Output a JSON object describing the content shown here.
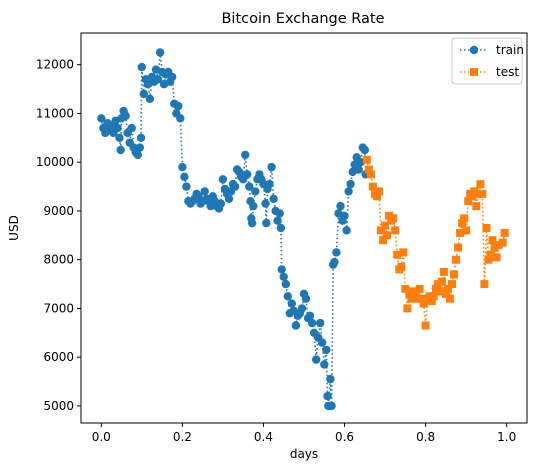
{
  "chart_data": {
    "type": "line",
    "title": "Bitcoin Exchange Rate",
    "xlabel": "days",
    "ylabel": "USD",
    "xlim": [
      -0.05,
      1.05
    ],
    "ylim": [
      4650,
      12650
    ],
    "x_ticks": [
      0.0,
      0.2,
      0.4,
      0.6,
      0.8,
      1.0
    ],
    "x_tick_labels": [
      "0.0",
      "0.2",
      "0.4",
      "0.6",
      "0.8",
      "1.0"
    ],
    "y_ticks": [
      5000,
      6000,
      7000,
      8000,
      9000,
      10000,
      11000,
      12000
    ],
    "y_tick_labels": [
      "5000",
      "6000",
      "7000",
      "8000",
      "9000",
      "10000",
      "11000",
      "12000"
    ],
    "grid": false,
    "legend_position": "top-right",
    "series": [
      {
        "name": "train",
        "color": "#1f77b4",
        "marker": "circle",
        "line_style": "dotted",
        "points": [
          [
            0.0,
            10900
          ],
          [
            0.005,
            10700
          ],
          [
            0.01,
            10600
          ],
          [
            0.015,
            10800
          ],
          [
            0.02,
            10650
          ],
          [
            0.025,
            10750
          ],
          [
            0.03,
            10600
          ],
          [
            0.035,
            10850
          ],
          [
            0.04,
            10700
          ],
          [
            0.045,
            10500
          ],
          [
            0.048,
            10250
          ],
          [
            0.05,
            10900
          ],
          [
            0.055,
            11050
          ],
          [
            0.06,
            10950
          ],
          [
            0.065,
            10600
          ],
          [
            0.07,
            10400
          ],
          [
            0.075,
            10700
          ],
          [
            0.08,
            10300
          ],
          [
            0.085,
            10200
          ],
          [
            0.09,
            10150
          ],
          [
            0.095,
            10300
          ],
          [
            0.098,
            10500
          ],
          [
            0.1,
            11950
          ],
          [
            0.105,
            11400
          ],
          [
            0.11,
            11700
          ],
          [
            0.115,
            11600
          ],
          [
            0.12,
            11300
          ],
          [
            0.125,
            11750
          ],
          [
            0.13,
            11650
          ],
          [
            0.135,
            11900
          ],
          [
            0.14,
            11700
          ],
          [
            0.145,
            12250
          ],
          [
            0.15,
            11850
          ],
          [
            0.155,
            11600
          ],
          [
            0.16,
            11800
          ],
          [
            0.165,
            11850
          ],
          [
            0.17,
            11650
          ],
          [
            0.175,
            11750
          ],
          [
            0.18,
            11200
          ],
          [
            0.185,
            11000
          ],
          [
            0.19,
            11150
          ],
          [
            0.195,
            10900
          ],
          [
            0.2,
            9900
          ],
          [
            0.205,
            9700
          ],
          [
            0.21,
            9500
          ],
          [
            0.215,
            9200
          ],
          [
            0.22,
            9150
          ],
          [
            0.225,
            9200
          ],
          [
            0.23,
            9250
          ],
          [
            0.235,
            9350
          ],
          [
            0.24,
            9300
          ],
          [
            0.245,
            9150
          ],
          [
            0.25,
            9200
          ],
          [
            0.255,
            9400
          ],
          [
            0.26,
            9250
          ],
          [
            0.265,
            9200
          ],
          [
            0.27,
            9100
          ],
          [
            0.275,
            9300
          ],
          [
            0.28,
            9200
          ],
          [
            0.285,
            9100
          ],
          [
            0.29,
            9050
          ],
          [
            0.295,
            9150
          ],
          [
            0.3,
            9650
          ],
          [
            0.305,
            9450
          ],
          [
            0.31,
            9350
          ],
          [
            0.315,
            9250
          ],
          [
            0.32,
            9400
          ],
          [
            0.325,
            9550
          ],
          [
            0.33,
            9500
          ],
          [
            0.335,
            9850
          ],
          [
            0.34,
            9800
          ],
          [
            0.345,
            9700
          ],
          [
            0.35,
            9650
          ],
          [
            0.355,
            10150
          ],
          [
            0.36,
            9750
          ],
          [
            0.365,
            9500
          ],
          [
            0.368,
            9200
          ],
          [
            0.37,
            8850
          ],
          [
            0.372,
            8750
          ],
          [
            0.375,
            9100
          ],
          [
            0.38,
            9400
          ],
          [
            0.385,
            9650
          ],
          [
            0.39,
            9750
          ],
          [
            0.395,
            9650
          ],
          [
            0.4,
            9550
          ],
          [
            0.405,
            9150
          ],
          [
            0.407,
            8750
          ],
          [
            0.41,
            9450
          ],
          [
            0.415,
            9550
          ],
          [
            0.42,
            9900
          ],
          [
            0.425,
            9250
          ],
          [
            0.43,
            9000
          ],
          [
            0.435,
            8800
          ],
          [
            0.44,
            8950
          ],
          [
            0.443,
            8650
          ],
          [
            0.445,
            7800
          ],
          [
            0.45,
            7650
          ],
          [
            0.455,
            7500
          ],
          [
            0.46,
            7250
          ],
          [
            0.465,
            6900
          ],
          [
            0.47,
            7100
          ],
          [
            0.475,
            6950
          ],
          [
            0.48,
            6650
          ],
          [
            0.485,
            6850
          ],
          [
            0.49,
            6900
          ],
          [
            0.495,
            7000
          ],
          [
            0.5,
            7300
          ],
          [
            0.505,
            7200
          ],
          [
            0.51,
            6800
          ],
          [
            0.515,
            6850
          ],
          [
            0.52,
            6700
          ],
          [
            0.525,
            6500
          ],
          [
            0.53,
            5950
          ],
          [
            0.535,
            6400
          ],
          [
            0.54,
            6700
          ],
          [
            0.545,
            6300
          ],
          [
            0.55,
            5850
          ],
          [
            0.555,
            6150
          ],
          [
            0.558,
            5200
          ],
          [
            0.56,
            5000
          ],
          [
            0.565,
            5550
          ],
          [
            0.568,
            5000
          ],
          [
            0.572,
            7900
          ],
          [
            0.575,
            7950
          ],
          [
            0.58,
            8150
          ],
          [
            0.585,
            8950
          ],
          [
            0.59,
            9100
          ],
          [
            0.595,
            8800
          ],
          [
            0.6,
            8900
          ],
          [
            0.605,
            8600
          ],
          [
            0.61,
            9400
          ],
          [
            0.615,
            9550
          ],
          [
            0.62,
            9800
          ],
          [
            0.625,
            9950
          ],
          [
            0.63,
            10100
          ],
          [
            0.635,
            9850
          ],
          [
            0.64,
            10000
          ],
          [
            0.645,
            10300
          ],
          [
            0.65,
            10250
          ],
          [
            0.652,
            9750
          ]
        ]
      },
      {
        "name": "test",
        "color": "#ff7f0e",
        "marker": "square",
        "line_style": "dotted",
        "points": [
          [
            0.655,
            10050
          ],
          [
            0.66,
            9850
          ],
          [
            0.665,
            9750
          ],
          [
            0.67,
            9500
          ],
          [
            0.675,
            9350
          ],
          [
            0.68,
            9300
          ],
          [
            0.685,
            9400
          ],
          [
            0.69,
            8600
          ],
          [
            0.695,
            8400
          ],
          [
            0.7,
            8700
          ],
          [
            0.705,
            8500
          ],
          [
            0.71,
            8900
          ],
          [
            0.715,
            8800
          ],
          [
            0.72,
            8850
          ],
          [
            0.725,
            8600
          ],
          [
            0.73,
            8100
          ],
          [
            0.735,
            7800
          ],
          [
            0.74,
            7850
          ],
          [
            0.745,
            8150
          ],
          [
            0.75,
            7400
          ],
          [
            0.755,
            7000
          ],
          [
            0.76,
            7300
          ],
          [
            0.765,
            7200
          ],
          [
            0.77,
            7350
          ],
          [
            0.775,
            7250
          ],
          [
            0.78,
            7200
          ],
          [
            0.785,
            7400
          ],
          [
            0.79,
            7200
          ],
          [
            0.795,
            7100
          ],
          [
            0.8,
            6650
          ],
          [
            0.805,
            7200
          ],
          [
            0.81,
            7250
          ],
          [
            0.815,
            7150
          ],
          [
            0.82,
            7250
          ],
          [
            0.825,
            7400
          ],
          [
            0.83,
            7500
          ],
          [
            0.835,
            7350
          ],
          [
            0.84,
            7550
          ],
          [
            0.845,
            7750
          ],
          [
            0.85,
            7300
          ],
          [
            0.855,
            7400
          ],
          [
            0.86,
            7200
          ],
          [
            0.865,
            7500
          ],
          [
            0.87,
            7700
          ],
          [
            0.875,
            8000
          ],
          [
            0.88,
            8250
          ],
          [
            0.885,
            8550
          ],
          [
            0.89,
            8750
          ],
          [
            0.895,
            8850
          ],
          [
            0.9,
            8600
          ],
          [
            0.905,
            9200
          ],
          [
            0.91,
            9350
          ],
          [
            0.915,
            9300
          ],
          [
            0.92,
            9400
          ],
          [
            0.925,
            9100
          ],
          [
            0.93,
            9350
          ],
          [
            0.935,
            9550
          ],
          [
            0.94,
            9350
          ],
          [
            0.945,
            7500
          ],
          [
            0.95,
            8650
          ],
          [
            0.955,
            8000
          ],
          [
            0.96,
            8100
          ],
          [
            0.965,
            8400
          ],
          [
            0.97,
            8250
          ],
          [
            0.975,
            8050
          ],
          [
            0.98,
            8300
          ],
          [
            0.99,
            8350
          ],
          [
            0.995,
            8550
          ]
        ]
      }
    ]
  }
}
